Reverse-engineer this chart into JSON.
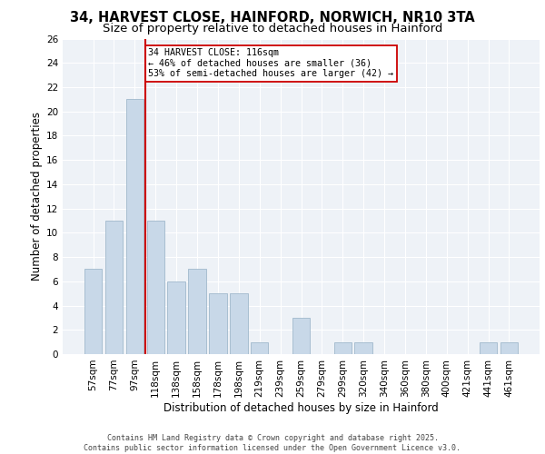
{
  "title_line1": "34, HARVEST CLOSE, HAINFORD, NORWICH, NR10 3TA",
  "title_line2": "Size of property relative to detached houses in Hainford",
  "xlabel": "Distribution of detached houses by size in Hainford",
  "ylabel": "Number of detached properties",
  "categories": [
    "57sqm",
    "77sqm",
    "97sqm",
    "118sqm",
    "138sqm",
    "158sqm",
    "178sqm",
    "198sqm",
    "219sqm",
    "239sqm",
    "259sqm",
    "279sqm",
    "299sqm",
    "320sqm",
    "340sqm",
    "360sqm",
    "380sqm",
    "400sqm",
    "421sqm",
    "441sqm",
    "461sqm"
  ],
  "values": [
    7,
    11,
    21,
    11,
    6,
    7,
    5,
    5,
    1,
    0,
    3,
    0,
    1,
    1,
    0,
    0,
    0,
    0,
    0,
    1,
    1
  ],
  "bar_color": "#c8d8e8",
  "bar_edge_color": "#a0b8cc",
  "vline_color": "#cc0000",
  "annotation_text": "34 HARVEST CLOSE: 116sqm\n← 46% of detached houses are smaller (36)\n53% of semi-detached houses are larger (42) →",
  "annotation_box_color": "#ffffff",
  "annotation_box_edge": "#cc0000",
  "ylim": [
    0,
    26
  ],
  "yticks": [
    0,
    2,
    4,
    6,
    8,
    10,
    12,
    14,
    16,
    18,
    20,
    22,
    24,
    26
  ],
  "background_color": "#eef2f7",
  "grid_color": "#ffffff",
  "footer_text": "Contains HM Land Registry data © Crown copyright and database right 2025.\nContains public sector information licensed under the Open Government Licence v3.0.",
  "title_fontsize": 10.5,
  "subtitle_fontsize": 9.5,
  "axis_label_fontsize": 8.5,
  "tick_fontsize": 7.5,
  "footer_fontsize": 6.0
}
